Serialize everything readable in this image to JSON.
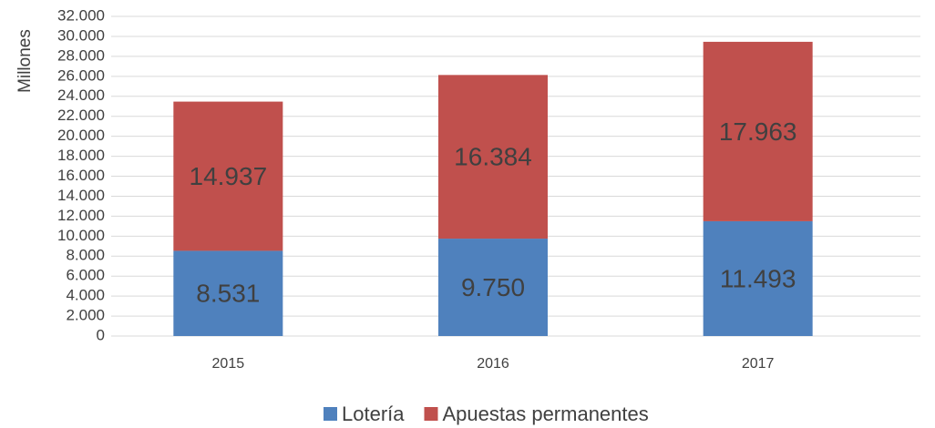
{
  "chart_data": {
    "type": "stacked_bar",
    "y_label": "Millones",
    "categories": [
      "2015",
      "2016",
      "2017"
    ],
    "series": [
      {
        "name": "Lotería",
        "color": "#4f81bd",
        "values": [
          8531,
          9750,
          11493
        ],
        "value_labels": [
          "8.531",
          "9.750",
          "11.493"
        ]
      },
      {
        "name": "Apuestas permanentes",
        "color": "#c0504d",
        "values": [
          14937,
          16384,
          17963
        ],
        "value_labels": [
          "14.937",
          "16.384",
          "17.963"
        ]
      }
    ],
    "ylim": [
      0,
      32000
    ],
    "yticks": [
      0,
      {
        "value": 2000,
        "label": "2.000"
      },
      {
        "value": 4000,
        "label": "4.000"
      },
      {
        "value": 6000,
        "label": "6.000"
      },
      {
        "value": 8000,
        "label": "8.000"
      },
      {
        "value": 10000,
        "label": "10.000"
      },
      {
        "value": 12000,
        "label": "12.000"
      },
      {
        "value": 14000,
        "label": "14.000"
      },
      {
        "value": 16000,
        "label": "16.000"
      },
      {
        "value": 18000,
        "label": "18.000"
      },
      {
        "value": 20000,
        "label": "20.000"
      },
      {
        "value": 22000,
        "label": "22.000"
      },
      {
        "value": 24000,
        "label": "24.000"
      },
      {
        "value": 26000,
        "label": "26.000"
      },
      {
        "value": 28000,
        "label": "28.000"
      },
      {
        "value": 30000,
        "label": "30.000"
      },
      {
        "value": 32000,
        "label": "32.000"
      }
    ],
    "grid": true,
    "legend": "bottom"
  }
}
